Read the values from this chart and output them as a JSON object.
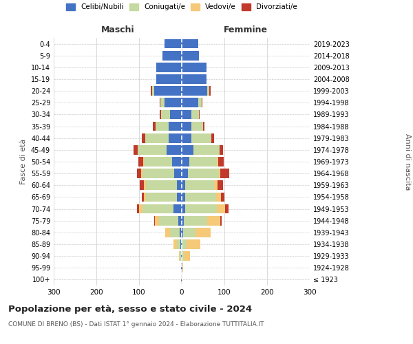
{
  "age_groups": [
    "100+",
    "95-99",
    "90-94",
    "85-89",
    "80-84",
    "75-79",
    "70-74",
    "65-69",
    "60-64",
    "55-59",
    "50-54",
    "45-49",
    "40-44",
    "35-39",
    "30-34",
    "25-29",
    "20-24",
    "15-19",
    "10-14",
    "5-9",
    "0-4"
  ],
  "birth_years": [
    "≤ 1923",
    "1924-1928",
    "1929-1933",
    "1934-1938",
    "1939-1943",
    "1944-1948",
    "1949-1953",
    "1954-1958",
    "1959-1963",
    "1964-1968",
    "1969-1973",
    "1974-1978",
    "1979-1983",
    "1984-1988",
    "1989-1993",
    "1994-1998",
    "1999-2003",
    "2004-2008",
    "2009-2013",
    "2014-2018",
    "2019-2023"
  ],
  "maschi": {
    "celibi": [
      1,
      1,
      2,
      3,
      5,
      8,
      20,
      12,
      12,
      17,
      23,
      35,
      30,
      30,
      28,
      40,
      65,
      60,
      60,
      45,
      40
    ],
    "coniugati": [
      0,
      1,
      3,
      8,
      22,
      45,
      72,
      72,
      72,
      75,
      65,
      68,
      55,
      32,
      20,
      10,
      5,
      0,
      0,
      0,
      0
    ],
    "vedovi": [
      0,
      0,
      2,
      8,
      12,
      10,
      8,
      4,
      4,
      3,
      2,
      0,
      0,
      0,
      0,
      0,
      0,
      0,
      0,
      0,
      0
    ],
    "divorziati": [
      0,
      0,
      0,
      0,
      0,
      2,
      5,
      5,
      10,
      10,
      12,
      10,
      8,
      5,
      3,
      2,
      2,
      0,
      0,
      0,
      0
    ]
  },
  "femmine": {
    "nubili": [
      0,
      1,
      0,
      0,
      3,
      5,
      8,
      8,
      8,
      15,
      18,
      28,
      22,
      22,
      22,
      38,
      60,
      58,
      58,
      40,
      38
    ],
    "coniugate": [
      0,
      1,
      5,
      12,
      30,
      55,
      75,
      72,
      68,
      72,
      65,
      60,
      48,
      28,
      18,
      8,
      5,
      0,
      0,
      0,
      0
    ],
    "vedove": [
      1,
      2,
      15,
      32,
      35,
      30,
      18,
      12,
      8,
      4,
      3,
      0,
      0,
      0,
      0,
      0,
      0,
      0,
      0,
      0,
      0
    ],
    "divorziate": [
      0,
      0,
      0,
      0,
      0,
      3,
      8,
      8,
      12,
      20,
      12,
      8,
      5,
      3,
      2,
      2,
      2,
      0,
      0,
      0,
      0
    ]
  },
  "colors": {
    "celibi": "#4472C4",
    "coniugati": "#C5D9A0",
    "vedovi": "#F5C978",
    "divorziati": "#C0392B"
  },
  "title": "Popolazione per età, sesso e stato civile - 2024",
  "subtitle": "COMUNE DI BRENO (BS) - Dati ISTAT 1° gennaio 2024 - Elaborazione TUTTITALIA.IT",
  "xlabel_left": "Maschi",
  "xlabel_right": "Femmine",
  "ylabel_left": "Fasce di età",
  "ylabel_right": "Anni di nascita",
  "xlim": 300,
  "background_color": "#ffffff",
  "grid_color": "#cccccc"
}
